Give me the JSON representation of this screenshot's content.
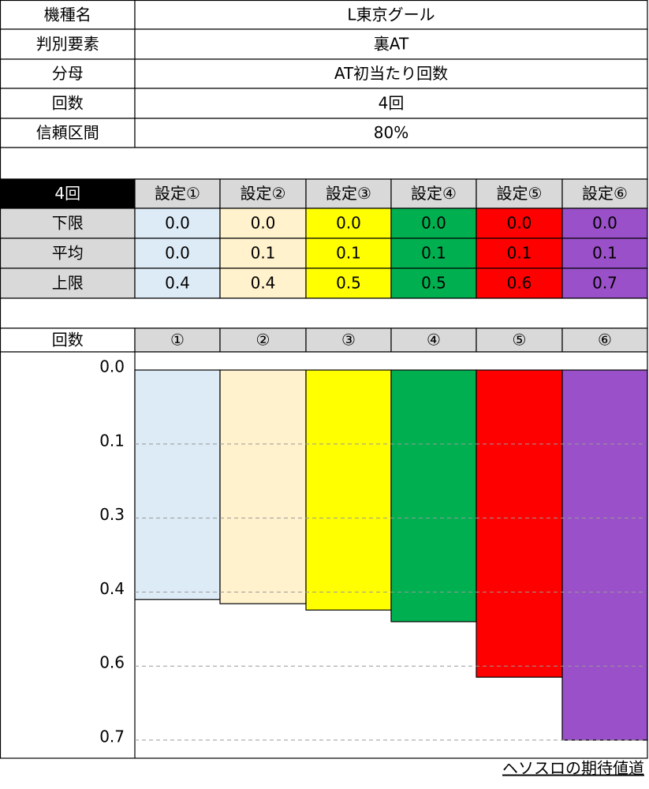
{
  "info": [
    {
      "label": "機種名",
      "value": "L東京グール"
    },
    {
      "label": "判別要素",
      "value": "裏AT"
    },
    {
      "label": "分母",
      "value": "AT初当たり回数"
    },
    {
      "label": "回数",
      "value": "4回"
    },
    {
      "label": "信頼区間",
      "value": "80%"
    }
  ],
  "table": {
    "corner": "4回",
    "columns": [
      "設定①",
      "設定②",
      "設定③",
      "設定④",
      "設定⑤",
      "設定⑥"
    ],
    "rows": [
      {
        "label": "下限",
        "cells": [
          "0.0",
          "0.0",
          "0.0",
          "0.0",
          "0.0",
          "0.0"
        ]
      },
      {
        "label": "平均",
        "cells": [
          "0.0",
          "0.1",
          "0.1",
          "0.1",
          "0.1",
          "0.1"
        ]
      },
      {
        "label": "上限",
        "cells": [
          "0.4",
          "0.4",
          "0.5",
          "0.5",
          "0.6",
          "0.7"
        ]
      }
    ]
  },
  "chart_data": {
    "type": "bar",
    "x_label": "回数",
    "categories": [
      "①",
      "②",
      "③",
      "④",
      "⑤",
      "⑥"
    ],
    "values": [
      0.434,
      0.442,
      0.454,
      0.476,
      0.581,
      0.7
    ],
    "colors": [
      "#ddebf7",
      "#fff2cc",
      "#ffff00",
      "#00b050",
      "#ff0000",
      "#9a50c8"
    ],
    "ylim": [
      0,
      0.7
    ],
    "yticks": [
      {
        "value": 0,
        "label": "0.0"
      },
      {
        "value": 0.14,
        "label": "0.1"
      },
      {
        "value": 0.28,
        "label": "0.3"
      },
      {
        "value": 0.42,
        "label": "0.4"
      },
      {
        "value": 0.56,
        "label": "0.6"
      },
      {
        "value": 0.7,
        "label": "0.7"
      }
    ],
    "inverted": true,
    "grid": true
  },
  "footer": "ヘソスロの期待値道"
}
